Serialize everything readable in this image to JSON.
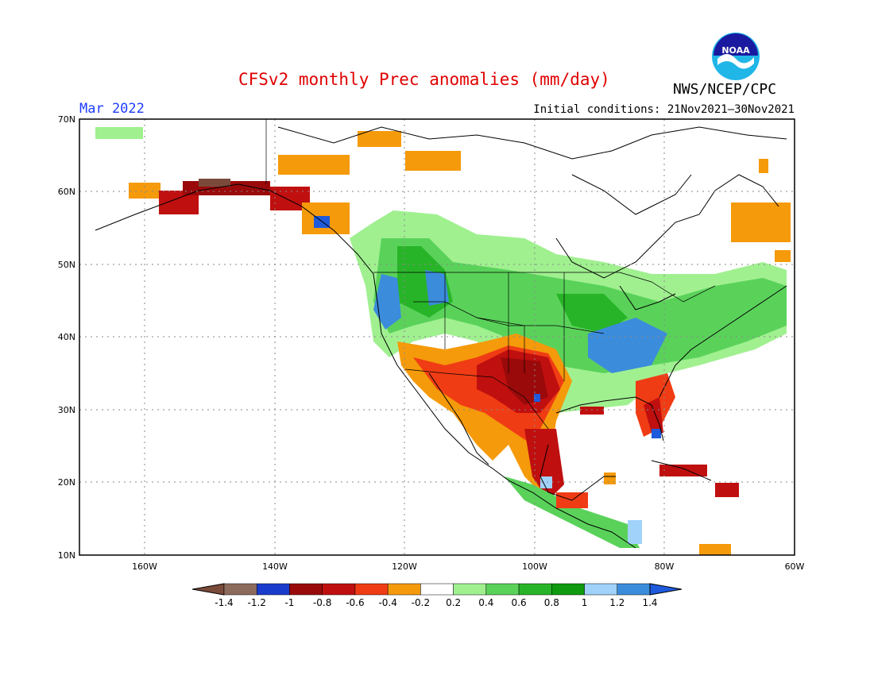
{
  "header": {
    "title": "CFSv2 monthly Prec anomalies (mm/day)",
    "agency": "NWS/NCEP/CPC",
    "logo_text": "NOAA",
    "valid_month": "Mar 2022",
    "initial_conditions": "Initial conditions: 21Nov2021–30Nov2021"
  },
  "map": {
    "lat_labels": [
      "70N",
      "60N",
      "50N",
      "40N",
      "30N",
      "20N",
      "10N"
    ],
    "lon_labels": [
      "160W",
      "140W",
      "120W",
      "100W",
      "80W",
      "60W"
    ],
    "gridlines": true
  },
  "colorbar": {
    "labels": [
      "-1.4",
      "-1.2",
      "-1",
      "-0.8",
      "-0.6",
      "-0.4",
      "-0.2",
      "0.2",
      "0.4",
      "0.6",
      "0.8",
      "1",
      "1.2",
      "1.4"
    ],
    "colors": [
      "#7a4a3a",
      "#8c6a5c",
      "#1a3ccc",
      "#9a0a0a",
      "#c00f0f",
      "#f03c14",
      "#f59a0a",
      "#ffffff",
      "#a0f090",
      "#5ad25a",
      "#28b428",
      "#0f9a0f",
      "#a0d2fa",
      "#3c8cdc",
      "#1e5adc"
    ]
  },
  "colors": {
    "title": "#e00000",
    "month": "#1e3cff",
    "dry_strong": "#c00f0f",
    "dry": "#f59a0a",
    "wet": "#5ad25a",
    "wet_strong": "#3c8cdc"
  }
}
